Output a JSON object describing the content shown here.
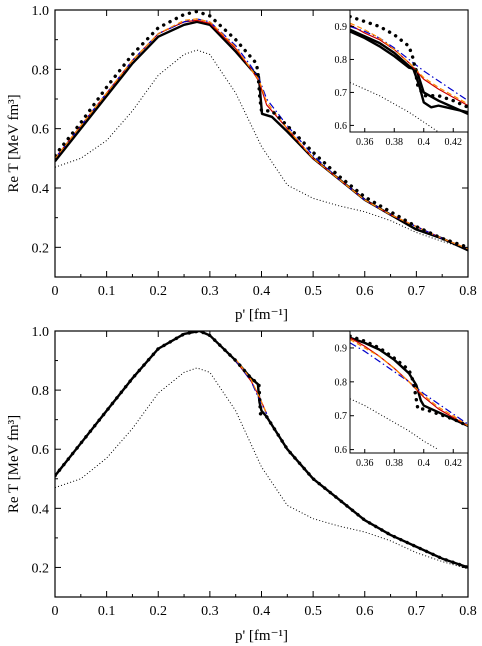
{
  "chart_data": [
    {
      "type": "line",
      "panel": "top",
      "xlabel": "p' [fm⁻¹]",
      "ylabel": "Re T [MeV fm³]",
      "xlim": [
        0.0,
        0.8
      ],
      "ylim": [
        0.1,
        1.0
      ],
      "xticks": [
        0,
        0.1,
        0.2,
        0.3,
        0.4,
        0.5,
        0.6,
        0.7,
        0.8
      ],
      "xtick_labels": [
        "0",
        "0.1",
        "0.2",
        "0.3",
        "0.4",
        "0.5",
        "0.6",
        "0.7",
        "0.8"
      ],
      "yticks": [
        0.2,
        0.4,
        0.6,
        0.8,
        1.0
      ],
      "ytick_labels": [
        "0.2",
        "0.4",
        "0.6",
        "0.8",
        "1.0"
      ],
      "series": [
        {
          "style": "thick-solid",
          "color": "#000000",
          "x": [
            0.0,
            0.05,
            0.1,
            0.15,
            0.2,
            0.25,
            0.275,
            0.3,
            0.35,
            0.38,
            0.395,
            0.398,
            0.401,
            0.42,
            0.45,
            0.5,
            0.55,
            0.6,
            0.65,
            0.7,
            0.75,
            0.8
          ],
          "y": [
            0.49,
            0.6,
            0.71,
            0.82,
            0.91,
            0.95,
            0.96,
            0.95,
            0.86,
            0.8,
            0.775,
            0.71,
            0.65,
            0.64,
            0.59,
            0.5,
            0.43,
            0.36,
            0.31,
            0.26,
            0.23,
            0.19
          ]
        },
        {
          "style": "thin-solid",
          "color": "#cc0000",
          "x": [
            0.0,
            0.05,
            0.1,
            0.15,
            0.2,
            0.25,
            0.275,
            0.3,
            0.35,
            0.38,
            0.395,
            0.41,
            0.45,
            0.5,
            0.55,
            0.6,
            0.65,
            0.7,
            0.75,
            0.8
          ],
          "y": [
            0.5,
            0.61,
            0.72,
            0.83,
            0.92,
            0.96,
            0.965,
            0.955,
            0.87,
            0.8,
            0.76,
            0.68,
            0.6,
            0.5,
            0.43,
            0.36,
            0.31,
            0.27,
            0.23,
            0.195
          ]
        },
        {
          "style": "dash-dot",
          "color": "#0000cc",
          "x": [
            0.0,
            0.05,
            0.1,
            0.15,
            0.2,
            0.25,
            0.275,
            0.3,
            0.35,
            0.38,
            0.395,
            0.41,
            0.45,
            0.5,
            0.55,
            0.6,
            0.65,
            0.7,
            0.75,
            0.8
          ],
          "y": [
            0.5,
            0.61,
            0.72,
            0.83,
            0.92,
            0.96,
            0.97,
            0.96,
            0.88,
            0.81,
            0.77,
            0.7,
            0.61,
            0.51,
            0.43,
            0.36,
            0.31,
            0.27,
            0.23,
            0.195
          ]
        },
        {
          "style": "dashed",
          "color": "#ff8800",
          "x": [
            0.0,
            0.05,
            0.1,
            0.15,
            0.2,
            0.25,
            0.275,
            0.3,
            0.35,
            0.38,
            0.395,
            0.41,
            0.45,
            0.5,
            0.55,
            0.6,
            0.65,
            0.7,
            0.75,
            0.8
          ],
          "y": [
            0.5,
            0.61,
            0.72,
            0.83,
            0.92,
            0.965,
            0.97,
            0.96,
            0.875,
            0.8,
            0.765,
            0.69,
            0.6,
            0.5,
            0.43,
            0.36,
            0.31,
            0.27,
            0.23,
            0.195
          ]
        },
        {
          "style": "big-dotted",
          "color": "#000000",
          "x": [
            0.0,
            0.05,
            0.1,
            0.15,
            0.2,
            0.25,
            0.275,
            0.3,
            0.35,
            0.38,
            0.39,
            0.393,
            0.397,
            0.4,
            0.42,
            0.45,
            0.5,
            0.55,
            0.6,
            0.65,
            0.7,
            0.75,
            0.8
          ],
          "y": [
            0.51,
            0.62,
            0.74,
            0.85,
            0.94,
            0.985,
            0.995,
            0.98,
            0.9,
            0.84,
            0.82,
            0.79,
            0.7,
            0.66,
            0.66,
            0.61,
            0.52,
            0.44,
            0.37,
            0.32,
            0.27,
            0.23,
            0.2
          ]
        },
        {
          "style": "fine-dotted",
          "color": "#000000",
          "x": [
            0.0,
            0.05,
            0.1,
            0.15,
            0.2,
            0.25,
            0.275,
            0.3,
            0.35,
            0.4,
            0.45,
            0.5,
            0.55,
            0.6,
            0.65,
            0.7,
            0.75,
            0.8
          ],
          "y": [
            0.47,
            0.5,
            0.56,
            0.66,
            0.78,
            0.85,
            0.865,
            0.85,
            0.72,
            0.54,
            0.41,
            0.365,
            0.34,
            0.32,
            0.29,
            0.25,
            0.22,
            0.195
          ]
        }
      ],
      "inset": {
        "xlim": [
          0.35,
          0.43
        ],
        "ylim": [
          0.58,
          0.95
        ],
        "xticks": [
          0.36,
          0.38,
          0.4,
          0.42
        ],
        "xtick_labels": [
          "0.36",
          "0.38",
          "0.4",
          "0.42"
        ],
        "yticks": [
          0.6,
          0.7,
          0.8,
          0.9
        ],
        "ytick_labels": [
          "0.6",
          "0.7",
          "0.8",
          "0.9"
        ],
        "series": [
          {
            "style": "thick-solid",
            "color": "#000000",
            "x": [
              0.35,
              0.36,
              0.37,
              0.38,
              0.39,
              0.393,
              0.397,
              0.4,
              0.405,
              0.41,
              0.42,
              0.43
            ],
            "y": [
              0.89,
              0.87,
              0.85,
              0.82,
              0.78,
              0.77,
              0.72,
              0.67,
              0.655,
              0.66,
              0.65,
              0.64
            ]
          },
          {
            "style": "thick-solid",
            "color": "#000000",
            "x": [
              0.35,
              0.36,
              0.37,
              0.38,
              0.39,
              0.395,
              0.4,
              0.41,
              0.42,
              0.43
            ],
            "y": [
              0.885,
              0.865,
              0.84,
              0.81,
              0.775,
              0.77,
              0.7,
              0.675,
              0.655,
              0.635
            ]
          },
          {
            "style": "thin-solid",
            "color": "#cc0000",
            "x": [
              0.35,
              0.36,
              0.37,
              0.38,
              0.39,
              0.4,
              0.41,
              0.42,
              0.43
            ],
            "y": [
              0.905,
              0.88,
              0.86,
              0.83,
              0.79,
              0.74,
              0.71,
              0.685,
              0.66
            ]
          },
          {
            "style": "dash-dot",
            "color": "#0000cc",
            "x": [
              0.35,
              0.36,
              0.37,
              0.38,
              0.39,
              0.4,
              0.41,
              0.42,
              0.43
            ],
            "y": [
              0.9,
              0.885,
              0.865,
              0.835,
              0.8,
              0.765,
              0.735,
              0.705,
              0.675
            ]
          },
          {
            "style": "dashed",
            "color": "#ff8800",
            "x": [
              0.35,
              0.36,
              0.37,
              0.38,
              0.39,
              0.4,
              0.41,
              0.42,
              0.43
            ],
            "y": [
              0.91,
              0.89,
              0.865,
              0.83,
              0.79,
              0.745,
              0.715,
              0.69,
              0.665
            ]
          },
          {
            "style": "big-dotted",
            "color": "#000000",
            "x": [
              0.35,
              0.36,
              0.37,
              0.38,
              0.39,
              0.393,
              0.396,
              0.4,
              0.41,
              0.42,
              0.43
            ],
            "y": [
              0.93,
              0.915,
              0.9,
              0.875,
              0.84,
              0.8,
              0.72,
              0.69,
              0.69,
              0.675,
              0.655
            ]
          },
          {
            "style": "fine-dotted",
            "color": "#000000",
            "x": [
              0.35,
              0.36,
              0.37,
              0.38,
              0.39,
              0.4,
              0.41
            ],
            "y": [
              0.73,
              0.71,
              0.69,
              0.665,
              0.64,
              0.61,
              0.58
            ]
          }
        ]
      }
    },
    {
      "type": "line",
      "panel": "bottom",
      "xlabel": "p' [fm⁻¹]",
      "ylabel": "Re T [MeV fm³]",
      "xlim": [
        0.0,
        0.8
      ],
      "ylim": [
        0.1,
        1.0
      ],
      "xticks": [
        0,
        0.1,
        0.2,
        0.3,
        0.4,
        0.5,
        0.6,
        0.7,
        0.8
      ],
      "xtick_labels": [
        "0",
        "0.1",
        "0.2",
        "0.3",
        "0.4",
        "0.5",
        "0.6",
        "0.7",
        "0.8"
      ],
      "yticks": [
        0.2,
        0.4,
        0.6,
        0.8,
        1.0
      ],
      "ytick_labels": [
        "0.2",
        "0.4",
        "0.6",
        "0.8",
        "1.0"
      ],
      "series": [
        {
          "style": "thick-solid",
          "color": "#000000",
          "x": [
            0.0,
            0.05,
            0.1,
            0.15,
            0.2,
            0.25,
            0.28,
            0.3,
            0.35,
            0.38,
            0.393,
            0.396,
            0.4,
            0.41,
            0.45,
            0.5,
            0.55,
            0.6,
            0.65,
            0.7,
            0.75,
            0.8
          ],
          "y": [
            0.51,
            0.62,
            0.73,
            0.84,
            0.94,
            0.99,
            1.0,
            0.985,
            0.9,
            0.84,
            0.82,
            0.76,
            0.73,
            0.71,
            0.6,
            0.5,
            0.43,
            0.36,
            0.31,
            0.27,
            0.23,
            0.2
          ]
        },
        {
          "style": "thin-solid",
          "color": "#cc0000",
          "x": [
            0.35,
            0.38,
            0.395,
            0.41
          ],
          "y": [
            0.9,
            0.83,
            0.78,
            0.72
          ]
        },
        {
          "style": "dash-dot",
          "color": "#0000cc",
          "x": [
            0.35,
            0.38,
            0.395,
            0.41
          ],
          "y": [
            0.9,
            0.83,
            0.77,
            0.72
          ]
        },
        {
          "style": "dashed",
          "color": "#ff8800",
          "x": [
            0.35,
            0.38,
            0.395,
            0.41
          ],
          "y": [
            0.905,
            0.835,
            0.78,
            0.72
          ]
        },
        {
          "style": "big-dotted",
          "color": "#000000",
          "x": [
            0.0,
            0.05,
            0.1,
            0.15,
            0.2,
            0.25,
            0.28,
            0.3,
            0.35,
            0.38,
            0.395,
            0.398,
            0.41,
            0.45,
            0.5,
            0.55,
            0.6,
            0.65,
            0.7,
            0.75,
            0.8
          ],
          "y": [
            0.51,
            0.62,
            0.73,
            0.84,
            0.94,
            0.99,
            1.0,
            0.985,
            0.9,
            0.84,
            0.82,
            0.72,
            0.71,
            0.6,
            0.5,
            0.43,
            0.36,
            0.31,
            0.27,
            0.23,
            0.2
          ]
        },
        {
          "style": "fine-dotted",
          "color": "#000000",
          "x": [
            0.0,
            0.05,
            0.1,
            0.15,
            0.2,
            0.25,
            0.275,
            0.3,
            0.35,
            0.4,
            0.45,
            0.5,
            0.55,
            0.6,
            0.65,
            0.7,
            0.75,
            0.8
          ],
          "y": [
            0.47,
            0.5,
            0.57,
            0.67,
            0.79,
            0.86,
            0.875,
            0.86,
            0.73,
            0.54,
            0.41,
            0.365,
            0.34,
            0.32,
            0.29,
            0.25,
            0.22,
            0.195
          ]
        }
      ],
      "inset": {
        "xlim": [
          0.35,
          0.43
        ],
        "ylim": [
          0.59,
          0.95
        ],
        "xticks": [
          0.36,
          0.38,
          0.4,
          0.42
        ],
        "xtick_labels": [
          "0.36",
          "0.38",
          "0.4",
          "0.42"
        ],
        "yticks": [
          0.6,
          0.7,
          0.8,
          0.9
        ],
        "ytick_labels": [
          "0.6",
          "0.7",
          "0.8",
          "0.9"
        ],
        "series": [
          {
            "style": "thick-solid",
            "color": "#000000",
            "x": [
              0.35,
              0.36,
              0.37,
              0.38,
              0.39,
              0.395,
              0.398,
              0.4,
              0.41,
              0.42,
              0.43
            ],
            "y": [
              0.93,
              0.915,
              0.895,
              0.865,
              0.825,
              0.79,
              0.745,
              0.73,
              0.71,
              0.69,
              0.67
            ]
          },
          {
            "style": "thin-solid",
            "color": "#cc0000",
            "x": [
              0.35,
              0.36,
              0.37,
              0.38,
              0.39,
              0.4,
              0.41,
              0.42,
              0.43
            ],
            "y": [
              0.93,
              0.905,
              0.875,
              0.84,
              0.8,
              0.755,
              0.72,
              0.695,
              0.67
            ]
          },
          {
            "style": "dash-dot",
            "color": "#0000cc",
            "x": [
              0.35,
              0.36,
              0.37,
              0.38,
              0.39,
              0.4,
              0.41,
              0.42,
              0.43
            ],
            "y": [
              0.915,
              0.89,
              0.86,
              0.83,
              0.8,
              0.765,
              0.735,
              0.705,
              0.675
            ]
          },
          {
            "style": "dashed",
            "color": "#ff8800",
            "x": [
              0.35,
              0.36,
              0.37,
              0.38,
              0.39,
              0.4,
              0.41,
              0.42,
              0.43
            ],
            "y": [
              0.925,
              0.9,
              0.875,
              0.84,
              0.8,
              0.76,
              0.725,
              0.7,
              0.67
            ]
          },
          {
            "style": "big-dotted",
            "color": "#000000",
            "x": [
              0.35,
              0.36,
              0.37,
              0.38,
              0.39,
              0.393,
              0.396,
              0.4,
              0.41,
              0.42,
              0.43
            ],
            "y": [
              0.935,
              0.92,
              0.9,
              0.87,
              0.835,
              0.8,
              0.72,
              0.72,
              0.705,
              0.69,
              0.67
            ]
          },
          {
            "style": "fine-dotted",
            "color": "#000000",
            "x": [
              0.35,
              0.36,
              0.37,
              0.38,
              0.39,
              0.4,
              0.41
            ],
            "y": [
              0.75,
              0.73,
              0.705,
              0.68,
              0.655,
              0.625,
              0.6
            ]
          }
        ]
      }
    }
  ]
}
